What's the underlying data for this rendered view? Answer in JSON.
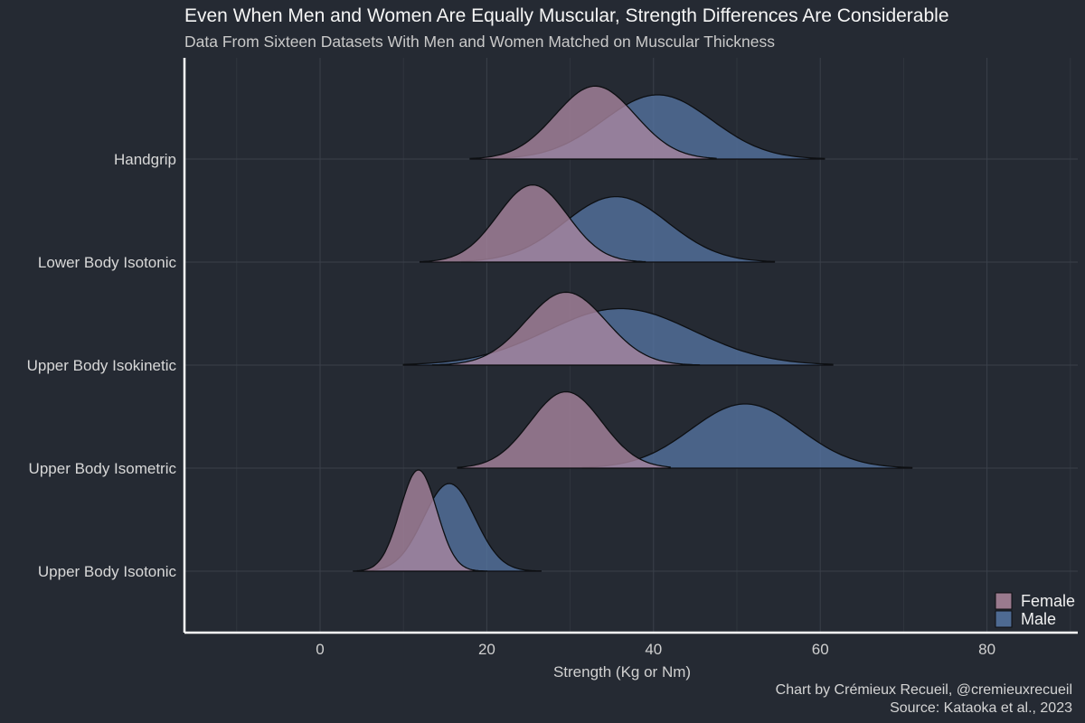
{
  "chart_data": {
    "type": "area",
    "subtype": "ridgeline-density",
    "title": "Even When Men and Women Are Equally Muscular, Strength Differences Are Considerable",
    "subtitle": "Data From Sixteen Datasets With Men and Women Matched on Muscular Thickness",
    "xlabel": "Strength (Kg or Nm)",
    "ylabel": "",
    "xlim": [
      -16,
      91
    ],
    "xticks": [
      0,
      20,
      40,
      60,
      80
    ],
    "grid": true,
    "legend_position": "bottom-right",
    "categories": [
      "Handgrip",
      "Lower Body Isotonic",
      "Upper Body Isokinetic",
      "Upper Body Isometric",
      "Upper Body Isotonic"
    ],
    "series": [
      {
        "name": "Female",
        "color": "#9a7a8e",
        "distributions": [
          {
            "category": "Handgrip",
            "mean": 33,
            "sd": 4.8,
            "min": 18,
            "max": 47.5
          },
          {
            "category": "Lower Body Isotonic",
            "mean": 25.5,
            "sd": 4.2,
            "min": 12,
            "max": 39
          },
          {
            "category": "Upper Body Isokinetic",
            "mean": 29.5,
            "sd": 4.8,
            "min": 13.5,
            "max": 45.5
          },
          {
            "category": "Upper Body Isometric",
            "mean": 29.5,
            "sd": 4.3,
            "min": 16.5,
            "max": 42
          },
          {
            "category": "Upper Body Isotonic",
            "mean": 11.8,
            "sd": 2.2,
            "min": 4.5,
            "max": 20
          }
        ]
      },
      {
        "name": "Male",
        "color": "#4e6a92",
        "distributions": [
          {
            "category": "Handgrip",
            "mean": 40.5,
            "sd": 6.5,
            "min": 21,
            "max": 60.5
          },
          {
            "category": "Lower Body Isotonic",
            "mean": 35.5,
            "sd": 6.2,
            "min": 17,
            "max": 54.5
          },
          {
            "category": "Upper Body Isokinetic",
            "mean": 36,
            "sd": 8.8,
            "min": 10,
            "max": 61.5
          },
          {
            "category": "Upper Body Isometric",
            "mean": 51,
            "sd": 6.5,
            "min": 31.5,
            "max": 71
          },
          {
            "category": "Upper Body Isotonic",
            "mean": 15.5,
            "sd": 3.1,
            "min": 4,
            "max": 26.5
          }
        ]
      }
    ]
  },
  "credit_line1": "Chart by Crémieux Recueil, @cremieuxrecueil",
  "credit_line2": "Source: Kataoka et al., 2023"
}
